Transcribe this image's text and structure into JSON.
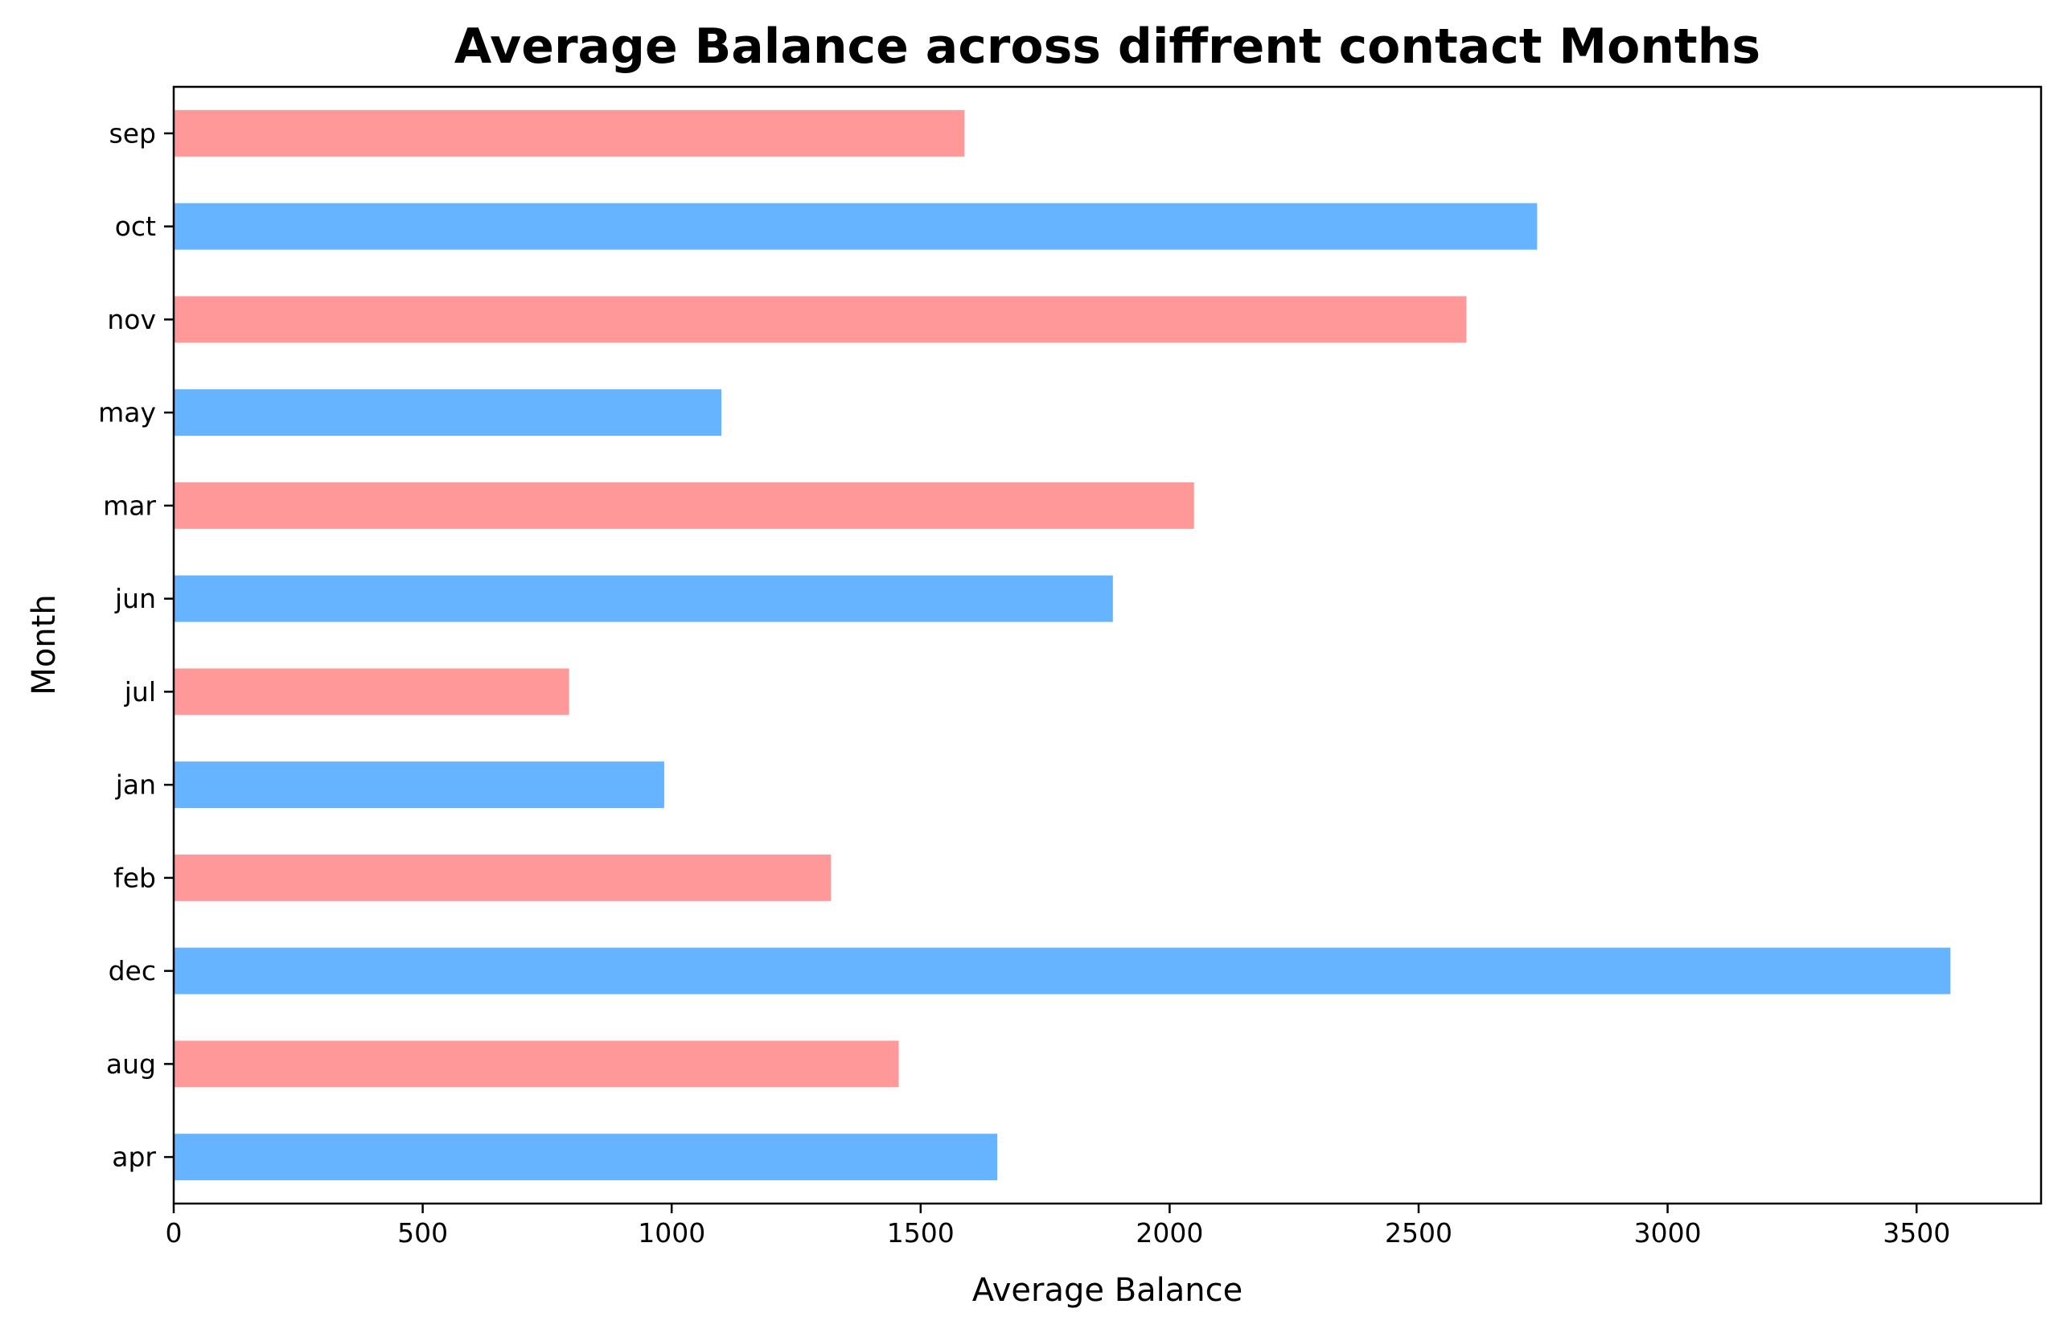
{
  "chart_data": {
    "type": "bar",
    "orientation": "horizontal",
    "title": "Average Balance across diffrent contact Months",
    "xlabel": "Average Balance",
    "ylabel": "Month",
    "categories": [
      "apr",
      "aug",
      "dec",
      "feb",
      "jan",
      "jul",
      "jun",
      "mar",
      "may",
      "nov",
      "oct",
      "sep"
    ],
    "values": [
      1654,
      1456,
      3568,
      1320,
      985,
      794,
      1886,
      2049,
      1100,
      2596,
      2738,
      1588
    ],
    "bar_colors": [
      "#66b3ff",
      "#ff9999"
    ],
    "xlim": [
      0,
      3750
    ],
    "xticks": [
      0,
      500,
      1000,
      1500,
      2000,
      2500,
      3000,
      3500
    ],
    "grid": false,
    "legend": "none"
  }
}
